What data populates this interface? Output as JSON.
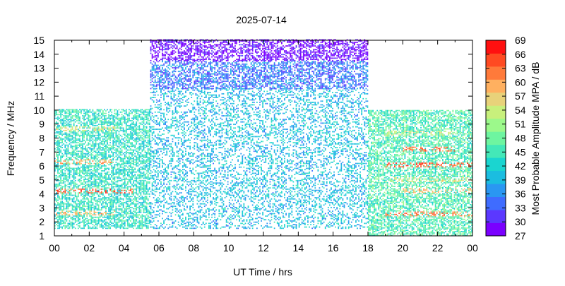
{
  "chart_data": {
    "type": "heatmap",
    "title": "2025-07-14",
    "xlabel": "UT Time / hrs",
    "ylabel": "Frequency / MHz",
    "colorbar_label": "Most Probable Amplitude MPA / dB",
    "xlim": [
      0,
      24
    ],
    "ylim": [
      1,
      15
    ],
    "x_tick_labels": [
      "00",
      "02",
      "04",
      "06",
      "08",
      "10",
      "12",
      "14",
      "16",
      "18",
      "20",
      "22",
      "00"
    ],
    "y_ticks": [
      1,
      2,
      3,
      4,
      5,
      6,
      7,
      8,
      9,
      10,
      11,
      12,
      13,
      14,
      15
    ],
    "colorbar": {
      "range": [
        27,
        69
      ],
      "ticks": [
        27,
        30,
        33,
        36,
        39,
        42,
        45,
        48,
        51,
        54,
        57,
        60,
        63,
        66,
        69
      ],
      "colors": [
        "#7a00ff",
        "#5b38ff",
        "#3f6cff",
        "#2a97f2",
        "#1bbde0",
        "#1ad5d0",
        "#43e8b8",
        "#6ef5a0",
        "#9cf98b",
        "#c8f07c",
        "#e8d27a",
        "#ffb060",
        "#ff7a3a",
        "#ff4a22",
        "#ff1010"
      ]
    },
    "grid": false,
    "regions": [
      {
        "t_start": 0.0,
        "t_end": 5.5,
        "f_min": 1.5,
        "f_max": 10.0,
        "mpa_typical": 44
      },
      {
        "t_start": 5.5,
        "t_end": 18.0,
        "f_min": 1.5,
        "f_max": 11.5,
        "mpa_typical": 40
      },
      {
        "t_start": 5.5,
        "t_end": 18.0,
        "f_min": 11.5,
        "f_max": 13.5,
        "mpa_typical": 35
      },
      {
        "t_start": 5.5,
        "t_end": 18.0,
        "f_min": 13.5,
        "f_max": 15.0,
        "mpa_typical": 28
      },
      {
        "t_start": 18.0,
        "t_end": 24.0,
        "f_min": 1.0,
        "f_max": 10.0,
        "mpa_typical": 46
      }
    ],
    "strong_bands": [
      {
        "t_start": 0.0,
        "t_end": 4.5,
        "f": 4.2,
        "mpa": 64
      },
      {
        "t_start": 0.0,
        "t_end": 3.5,
        "f": 6.3,
        "mpa": 60
      },
      {
        "t_start": 0.0,
        "t_end": 3.5,
        "f": 2.6,
        "mpa": 58
      },
      {
        "t_start": 0.0,
        "t_end": 3.5,
        "f": 8.6,
        "mpa": 55
      },
      {
        "t_start": 19.0,
        "t_end": 24.0,
        "f": 6.0,
        "mpa": 64
      },
      {
        "t_start": 19.0,
        "t_end": 24.0,
        "f": 2.5,
        "mpa": 62
      },
      {
        "t_start": 20.0,
        "t_end": 23.0,
        "f": 7.2,
        "mpa": 63
      },
      {
        "t_start": 20.0,
        "t_end": 24.0,
        "f": 4.2,
        "mpa": 58
      },
      {
        "t_start": 19.0,
        "t_end": 24.0,
        "f": 5.0,
        "mpa": 55
      },
      {
        "t_start": 19.0,
        "t_end": 23.0,
        "f": 8.3,
        "mpa": 54
      }
    ]
  }
}
